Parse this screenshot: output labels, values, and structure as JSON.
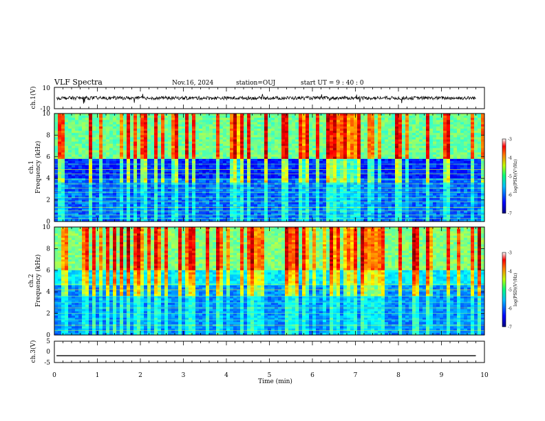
{
  "header": {
    "title": "VLF Spectra",
    "date": "Nov.16, 2024",
    "station": "station=OUJ",
    "start": "start  UT =   9  : 40 : 0"
  },
  "chart_data": [
    {
      "type": "line",
      "panel": "ch1-waveform",
      "ylabel": "ch.1(V)",
      "ylim": [
        -10,
        10
      ],
      "yticks": [
        "10",
        "-10"
      ],
      "xlim": [
        0,
        10
      ],
      "signal_level_v": 0.0
    },
    {
      "type": "heatmap",
      "panel": "ch1-spectrogram",
      "ylabel_line1": "ch.1",
      "ylabel_line2": "Frequency (kHz)",
      "ylim": [
        0,
        10
      ],
      "yticks": [
        "0",
        "2",
        "4",
        "6",
        "8",
        "10"
      ],
      "xlim": [
        0,
        10
      ],
      "colorbar": {
        "label": "log(PSD)(V²/Hz)",
        "range": [
          -7,
          -3
        ],
        "ticks": [
          "-3",
          "-4",
          "-5",
          "-6",
          "-7"
        ]
      }
    },
    {
      "type": "heatmap",
      "panel": "ch2-spectrogram",
      "ylabel_line1": "ch.2",
      "ylabel_line2": "Frequency (kHz)",
      "ylim": [
        0,
        10
      ],
      "yticks": [
        "0",
        "2",
        "4",
        "6",
        "8",
        "10"
      ],
      "xlim": [
        0,
        10
      ],
      "colorbar": {
        "label": "log(PSD)(V²/Hz)",
        "range": [
          -7,
          -3
        ],
        "ticks": [
          "-3",
          "-4",
          "-5",
          "-6",
          "-7"
        ]
      }
    },
    {
      "type": "line",
      "panel": "ch3-waveform",
      "ylabel": "ch.3(V)",
      "ylim": [
        -5,
        5
      ],
      "yticks": [
        "5",
        "0",
        "-5"
      ],
      "xlim": [
        0,
        10
      ],
      "signal_level_v": -1.8
    }
  ],
  "xaxis": {
    "label": "Time (min)",
    "ticks": [
      "0",
      "1",
      "2",
      "3",
      "4",
      "5",
      "6",
      "7",
      "8",
      "9",
      "10"
    ]
  },
  "colors": {
    "jet": [
      "#00007f",
      "#0000ff",
      "#007fff",
      "#00ffff",
      "#7fff7f",
      "#ffff00",
      "#ff7f00",
      "#ff0000",
      "#7f0000"
    ]
  }
}
